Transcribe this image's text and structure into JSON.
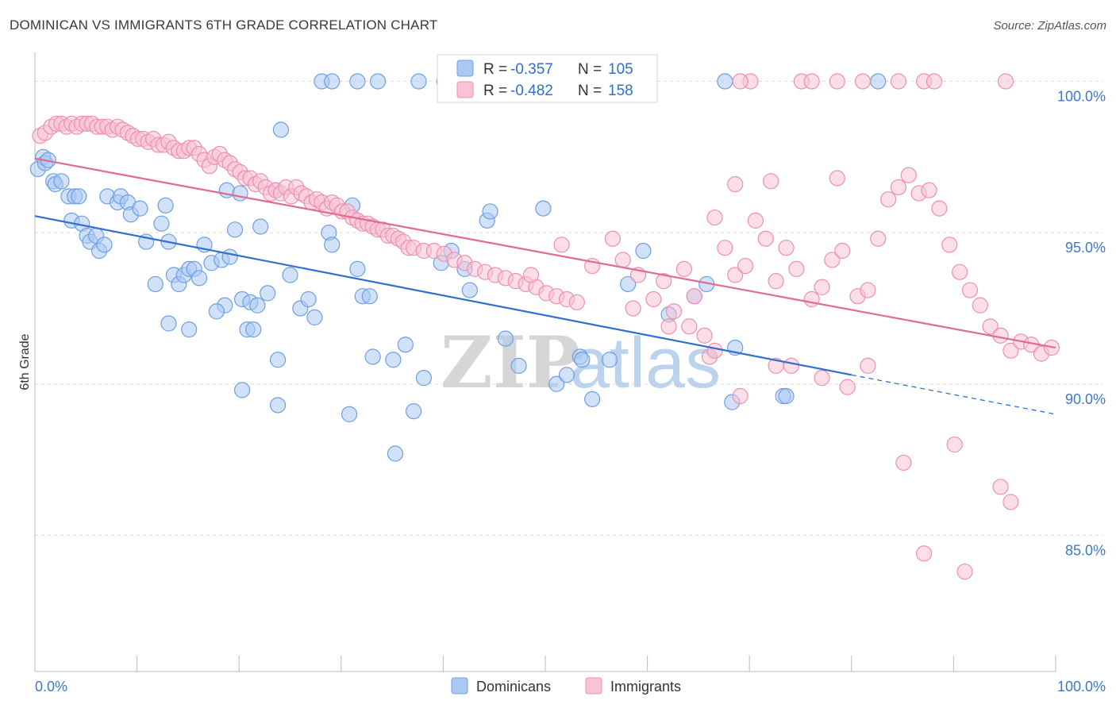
{
  "title": "DOMINICAN VS IMMIGRANTS 6TH GRADE CORRELATION CHART",
  "source": "Source: ZipAtlas.com",
  "watermark": {
    "zip": "ZIP",
    "atlas": "atlas"
  },
  "chart_data": {
    "type": "scatter",
    "title": "DOMINICAN VS IMMIGRANTS 6TH GRADE CORRELATION CHART",
    "xlabel": "",
    "ylabel": "6th Grade",
    "xlim": [
      0,
      100
    ],
    "ylim": [
      80.5,
      100.8
    ],
    "x_tick_labels": [
      "0.0%",
      "100.0%"
    ],
    "y_ticks": [
      85,
      90,
      95,
      100
    ],
    "y_tick_labels": [
      "85.0%",
      "90.0%",
      "95.0%",
      "100.0%"
    ],
    "grid": true,
    "legend_position": "bottom",
    "stats_box": [
      {
        "r_label": "R =",
        "r_value": "-0.357",
        "n_label": "N =",
        "n_value": "105"
      },
      {
        "r_label": "R =",
        "r_value": "-0.482",
        "n_label": "N =",
        "n_value": "158"
      }
    ],
    "series": [
      {
        "name": "Dominicans",
        "color": "#a9c8f2",
        "stroke": "#6f9fe0",
        "line_color": "#2f6fce",
        "trend": {
          "x0": 0,
          "y0": 95.55,
          "x1": 80,
          "y1": 90.3,
          "dash_to_x": 100,
          "dash_to_y": 89.0
        },
        "points": [
          [
            0.3,
            97.1
          ],
          [
            0.8,
            97.5
          ],
          [
            1.0,
            97.3
          ],
          [
            1.3,
            97.4
          ],
          [
            1.8,
            96.7
          ],
          [
            2.0,
            96.6
          ],
          [
            2.6,
            96.7
          ],
          [
            3.3,
            96.2
          ],
          [
            3.9,
            96.2
          ],
          [
            4.3,
            96.2
          ],
          [
            3.6,
            95.4
          ],
          [
            4.6,
            95.3
          ],
          [
            5.1,
            94.9
          ],
          [
            5.4,
            94.7
          ],
          [
            6.0,
            94.9
          ],
          [
            6.3,
            94.4
          ],
          [
            6.8,
            94.6
          ],
          [
            7.1,
            96.2
          ],
          [
            8.1,
            96.0
          ],
          [
            8.4,
            96.2
          ],
          [
            9.1,
            96.0
          ],
          [
            9.4,
            95.6
          ],
          [
            10.3,
            95.8
          ],
          [
            10.9,
            94.7
          ],
          [
            12.4,
            95.3
          ],
          [
            12.8,
            95.9
          ],
          [
            13.1,
            94.7
          ],
          [
            11.8,
            93.3
          ],
          [
            13.6,
            93.6
          ],
          [
            14.1,
            93.3
          ],
          [
            14.6,
            93.6
          ],
          [
            15.1,
            93.8
          ],
          [
            15.6,
            93.8
          ],
          [
            16.1,
            93.5
          ],
          [
            16.6,
            94.6
          ],
          [
            17.3,
            94.0
          ],
          [
            18.3,
            94.1
          ],
          [
            18.6,
            92.6
          ],
          [
            17.8,
            92.4
          ],
          [
            20.3,
            92.8
          ],
          [
            20.8,
            91.8
          ],
          [
            21.1,
            92.7
          ],
          [
            21.8,
            92.6
          ],
          [
            22.8,
            93.0
          ],
          [
            25.0,
            93.6
          ],
          [
            26.0,
            92.5
          ],
          [
            26.8,
            92.8
          ],
          [
            27.4,
            92.2
          ],
          [
            28.8,
            95.0
          ],
          [
            29.1,
            94.6
          ],
          [
            31.1,
            95.9
          ],
          [
            31.6,
            93.8
          ],
          [
            32.1,
            92.9
          ],
          [
            32.8,
            92.9
          ],
          [
            19.1,
            94.2
          ],
          [
            19.6,
            95.1
          ],
          [
            18.8,
            96.4
          ],
          [
            20.1,
            96.3
          ],
          [
            22.1,
            95.2
          ],
          [
            23.6,
            96.4
          ],
          [
            24.1,
            98.4
          ],
          [
            28.1,
            100.0
          ],
          [
            29.1,
            100.0
          ],
          [
            31.6,
            100.0
          ],
          [
            33.6,
            100.0
          ],
          [
            37.6,
            100.0
          ],
          [
            40.1,
            100.0
          ],
          [
            46.8,
            100.0
          ],
          [
            13.1,
            92.0
          ],
          [
            15.1,
            91.8
          ],
          [
            21.4,
            91.8
          ],
          [
            23.8,
            90.8
          ],
          [
            20.3,
            89.8
          ],
          [
            23.8,
            89.3
          ],
          [
            30.8,
            89.0
          ],
          [
            33.1,
            90.9
          ],
          [
            35.1,
            90.8
          ],
          [
            36.3,
            91.3
          ],
          [
            37.1,
            89.1
          ],
          [
            38.1,
            90.2
          ],
          [
            39.8,
            94.0
          ],
          [
            40.8,
            94.4
          ],
          [
            42.1,
            93.8
          ],
          [
            42.6,
            93.1
          ],
          [
            44.3,
            95.4
          ],
          [
            44.6,
            95.7
          ],
          [
            46.1,
            91.5
          ],
          [
            47.4,
            90.6
          ],
          [
            49.8,
            95.8
          ],
          [
            51.1,
            90.0
          ],
          [
            52.1,
            90.3
          ],
          [
            53.4,
            90.9
          ],
          [
            53.6,
            90.8
          ],
          [
            54.6,
            89.5
          ],
          [
            56.3,
            90.8
          ],
          [
            58.1,
            93.3
          ],
          [
            59.6,
            94.4
          ],
          [
            62.1,
            92.3
          ],
          [
            64.6,
            92.9
          ],
          [
            65.8,
            93.3
          ],
          [
            68.3,
            89.4
          ],
          [
            68.6,
            91.2
          ],
          [
            73.3,
            89.6
          ],
          [
            73.6,
            89.6
          ],
          [
            67.6,
            100.0
          ],
          [
            82.6,
            100.0
          ],
          [
            35.3,
            87.7
          ]
        ]
      },
      {
        "name": "Immigrants",
        "color": "#f8c3d6",
        "stroke": "#ee8fb0",
        "line_color": "#e06a96",
        "trend": {
          "x0": 0,
          "y0": 97.45,
          "x1": 100,
          "y1": 91.2
        },
        "points": [
          [
            0.5,
            98.2
          ],
          [
            1.0,
            98.3
          ],
          [
            1.6,
            98.5
          ],
          [
            2.1,
            98.6
          ],
          [
            2.6,
            98.6
          ],
          [
            3.1,
            98.5
          ],
          [
            3.6,
            98.6
          ],
          [
            4.1,
            98.5
          ],
          [
            4.6,
            98.6
          ],
          [
            5.1,
            98.6
          ],
          [
            5.6,
            98.6
          ],
          [
            6.1,
            98.5
          ],
          [
            6.6,
            98.5
          ],
          [
            7.1,
            98.5
          ],
          [
            7.6,
            98.4
          ],
          [
            8.1,
            98.5
          ],
          [
            8.6,
            98.4
          ],
          [
            9.1,
            98.3
          ],
          [
            9.6,
            98.2
          ],
          [
            10.1,
            98.1
          ],
          [
            10.6,
            98.1
          ],
          [
            11.1,
            98.0
          ],
          [
            11.6,
            98.1
          ],
          [
            12.1,
            97.9
          ],
          [
            12.6,
            97.9
          ],
          [
            13.1,
            98.0
          ],
          [
            13.6,
            97.8
          ],
          [
            14.1,
            97.7
          ],
          [
            14.6,
            97.7
          ],
          [
            15.1,
            97.8
          ],
          [
            15.6,
            97.8
          ],
          [
            16.1,
            97.6
          ],
          [
            16.6,
            97.4
          ],
          [
            17.1,
            97.2
          ],
          [
            17.6,
            97.5
          ],
          [
            18.1,
            97.6
          ],
          [
            18.6,
            97.4
          ],
          [
            19.1,
            97.3
          ],
          [
            19.6,
            97.1
          ],
          [
            20.1,
            97.0
          ],
          [
            20.6,
            96.8
          ],
          [
            21.1,
            96.8
          ],
          [
            21.6,
            96.6
          ],
          [
            22.1,
            96.7
          ],
          [
            22.6,
            96.5
          ],
          [
            23.1,
            96.3
          ],
          [
            23.6,
            96.4
          ],
          [
            24.1,
            96.3
          ],
          [
            24.6,
            96.5
          ],
          [
            25.1,
            96.2
          ],
          [
            25.6,
            96.5
          ],
          [
            26.1,
            96.3
          ],
          [
            26.6,
            96.2
          ],
          [
            27.1,
            96.0
          ],
          [
            27.6,
            96.1
          ],
          [
            28.1,
            96.0
          ],
          [
            28.6,
            95.8
          ],
          [
            29.1,
            96.0
          ],
          [
            29.6,
            95.9
          ],
          [
            30.1,
            95.7
          ],
          [
            30.6,
            95.7
          ],
          [
            31.1,
            95.5
          ],
          [
            31.6,
            95.4
          ],
          [
            32.1,
            95.3
          ],
          [
            32.6,
            95.3
          ],
          [
            33.1,
            95.2
          ],
          [
            33.6,
            95.1
          ],
          [
            34.1,
            95.1
          ],
          [
            34.6,
            94.9
          ],
          [
            35.1,
            94.9
          ],
          [
            35.6,
            94.8
          ],
          [
            36.1,
            94.7
          ],
          [
            36.6,
            94.5
          ],
          [
            37.1,
            94.5
          ],
          [
            38.1,
            94.4
          ],
          [
            39.1,
            94.4
          ],
          [
            40.1,
            94.3
          ],
          [
            41.1,
            94.1
          ],
          [
            42.1,
            94.0
          ],
          [
            43.1,
            93.8
          ],
          [
            44.1,
            93.7
          ],
          [
            45.1,
            93.6
          ],
          [
            46.1,
            93.5
          ],
          [
            47.1,
            93.4
          ],
          [
            48.1,
            93.3
          ],
          [
            49.1,
            93.2
          ],
          [
            50.1,
            93.0
          ],
          [
            51.1,
            92.9
          ],
          [
            52.1,
            92.8
          ],
          [
            53.1,
            92.7
          ],
          [
            48.6,
            93.6
          ],
          [
            51.6,
            94.6
          ],
          [
            54.6,
            93.9
          ],
          [
            56.6,
            94.8
          ],
          [
            57.6,
            94.1
          ],
          [
            58.6,
            92.5
          ],
          [
            59.1,
            93.6
          ],
          [
            60.6,
            92.8
          ],
          [
            61.6,
            93.4
          ],
          [
            62.6,
            92.4
          ],
          [
            63.6,
            93.8
          ],
          [
            64.6,
            92.9
          ],
          [
            65.6,
            91.6
          ],
          [
            66.6,
            95.5
          ],
          [
            67.6,
            94.5
          ],
          [
            68.6,
            93.6
          ],
          [
            69.6,
            93.9
          ],
          [
            70.6,
            95.4
          ],
          [
            71.6,
            94.8
          ],
          [
            72.6,
            93.4
          ],
          [
            73.6,
            94.5
          ],
          [
            74.6,
            93.8
          ],
          [
            76.1,
            92.8
          ],
          [
            77.1,
            93.2
          ],
          [
            78.1,
            94.1
          ],
          [
            79.1,
            94.4
          ],
          [
            80.6,
            92.9
          ],
          [
            81.6,
            93.1
          ],
          [
            82.6,
            94.8
          ],
          [
            83.6,
            96.1
          ],
          [
            84.6,
            96.5
          ],
          [
            85.6,
            96.9
          ],
          [
            86.6,
            96.3
          ],
          [
            87.6,
            96.4
          ],
          [
            88.6,
            95.8
          ],
          [
            89.6,
            94.6
          ],
          [
            90.6,
            93.7
          ],
          [
            91.6,
            93.1
          ],
          [
            92.6,
            92.6
          ],
          [
            93.6,
            91.9
          ],
          [
            94.6,
            91.6
          ],
          [
            95.6,
            91.1
          ],
          [
            96.6,
            91.4
          ],
          [
            97.6,
            91.3
          ],
          [
            98.6,
            91.0
          ],
          [
            99.6,
            91.2
          ],
          [
            68.6,
            96.6
          ],
          [
            72.1,
            96.7
          ],
          [
            78.6,
            96.8
          ],
          [
            62.1,
            91.9
          ],
          [
            64.1,
            91.9
          ],
          [
            66.1,
            90.9
          ],
          [
            66.6,
            91.1
          ],
          [
            69.1,
            89.6
          ],
          [
            72.6,
            90.6
          ],
          [
            74.1,
            90.6
          ],
          [
            77.1,
            90.2
          ],
          [
            79.6,
            89.9
          ],
          [
            81.6,
            90.6
          ],
          [
            85.1,
            87.4
          ],
          [
            87.1,
            84.4
          ],
          [
            90.1,
            88.0
          ],
          [
            91.1,
            83.8
          ],
          [
            94.6,
            86.6
          ],
          [
            95.6,
            86.1
          ],
          [
            70.1,
            100.0
          ],
          [
            75.1,
            100.0
          ],
          [
            76.1,
            100.0
          ],
          [
            78.6,
            100.0
          ],
          [
            81.1,
            100.0
          ],
          [
            84.6,
            100.0
          ],
          [
            87.1,
            100.0
          ],
          [
            88.1,
            100.0
          ],
          [
            95.1,
            100.0
          ],
          [
            69.1,
            100.0
          ]
        ]
      }
    ]
  }
}
